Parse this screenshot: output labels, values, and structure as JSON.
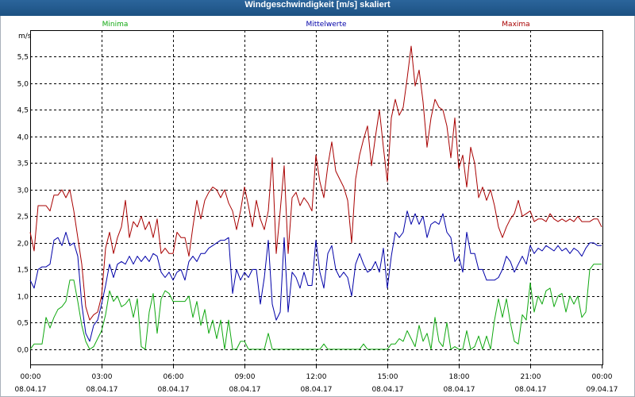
{
  "chart_data": {
    "type": "line",
    "title": "Windgeschwindigkeit [m/s] skaliert",
    "ylabel": "m/s",
    "xlabel": "",
    "ylim": [
      -0.3,
      6.0
    ],
    "xlim": [
      "08.04.17 00:00",
      "09.04.17 00:00"
    ],
    "grid": true,
    "legend_placement": "top",
    "y_ticks": [
      {
        "value": 0.0,
        "label": "0,0"
      },
      {
        "value": 0.5,
        "label": "0,5"
      },
      {
        "value": 1.0,
        "label": "1,0"
      },
      {
        "value": 1.5,
        "label": "1,5"
      },
      {
        "value": 2.0,
        "label": "2,0"
      },
      {
        "value": 2.5,
        "label": "2,5"
      },
      {
        "value": 3.0,
        "label": "3,0"
      },
      {
        "value": 3.5,
        "label": "3,5"
      },
      {
        "value": 4.0,
        "label": "4,0"
      },
      {
        "value": 4.5,
        "label": "4,5"
      },
      {
        "value": 5.0,
        "label": "5,0"
      },
      {
        "value": 5.5,
        "label": "5,5"
      }
    ],
    "x_ticks": [
      {
        "time": "00:00",
        "date": "08.04.17"
      },
      {
        "time": "03:00",
        "date": "08.04.17"
      },
      {
        "time": "06:00",
        "date": "08.04.17"
      },
      {
        "time": "09:00",
        "date": "08.04.17"
      },
      {
        "time": "12:00",
        "date": "08.04.17"
      },
      {
        "time": "15:00",
        "date": "08.04.17"
      },
      {
        "time": "18:00",
        "date": "08.04.17"
      },
      {
        "time": "21:00",
        "date": "08.04.17"
      },
      {
        "time": "00:00",
        "date": "09.04.17"
      }
    ],
    "x": [
      "08.04.17 00:00",
      "08.04.17 00:10",
      "08.04.17 00:20",
      "08.04.17 00:30",
      "08.04.17 00:40",
      "08.04.17 00:50",
      "08.04.17 01:00",
      "08.04.17 01:10",
      "08.04.17 01:20",
      "08.04.17 01:30",
      "08.04.17 01:40",
      "08.04.17 01:50",
      "08.04.17 02:00",
      "08.04.17 02:10",
      "08.04.17 02:20",
      "08.04.17 02:30",
      "08.04.17 02:40",
      "08.04.17 02:50",
      "08.04.17 03:00",
      "08.04.17 03:10",
      "08.04.17 03:20",
      "08.04.17 03:30",
      "08.04.17 03:40",
      "08.04.17 03:50",
      "08.04.17 04:00",
      "08.04.17 04:10",
      "08.04.17 04:20",
      "08.04.17 04:30",
      "08.04.17 04:40",
      "08.04.17 04:50",
      "08.04.17 05:00",
      "08.04.17 05:10",
      "08.04.17 05:20",
      "08.04.17 05:30",
      "08.04.17 05:40",
      "08.04.17 05:50",
      "08.04.17 06:00",
      "08.04.17 06:10",
      "08.04.17 06:20",
      "08.04.17 06:30",
      "08.04.17 06:40",
      "08.04.17 06:50",
      "08.04.17 07:00",
      "08.04.17 07:10",
      "08.04.17 07:20",
      "08.04.17 07:30",
      "08.04.17 07:40",
      "08.04.17 07:50",
      "08.04.17 08:00",
      "08.04.17 08:10",
      "08.04.17 08:20",
      "08.04.17 08:30",
      "08.04.17 08:40",
      "08.04.17 08:50",
      "08.04.17 09:00",
      "08.04.17 09:10",
      "08.04.17 09:20",
      "08.04.17 09:30",
      "08.04.17 09:40",
      "08.04.17 09:50",
      "08.04.17 10:00",
      "08.04.17 10:10",
      "08.04.17 10:20",
      "08.04.17 10:30",
      "08.04.17 10:40",
      "08.04.17 10:50",
      "08.04.17 11:00",
      "08.04.17 11:10",
      "08.04.17 11:20",
      "08.04.17 11:30",
      "08.04.17 11:40",
      "08.04.17 11:50",
      "08.04.17 12:00",
      "08.04.17 12:10",
      "08.04.17 12:20",
      "08.04.17 12:30",
      "08.04.17 12:40",
      "08.04.17 12:50",
      "08.04.17 13:00",
      "08.04.17 13:10",
      "08.04.17 13:20",
      "08.04.17 13:30",
      "08.04.17 13:40",
      "08.04.17 13:50",
      "08.04.17 14:00",
      "08.04.17 14:10",
      "08.04.17 14:20",
      "08.04.17 14:30",
      "08.04.17 14:40",
      "08.04.17 14:50",
      "08.04.17 15:00",
      "08.04.17 15:10",
      "08.04.17 15:20",
      "08.04.17 15:30",
      "08.04.17 15:40",
      "08.04.17 15:50",
      "08.04.17 16:00",
      "08.04.17 16:10",
      "08.04.17 16:20",
      "08.04.17 16:30",
      "08.04.17 16:40",
      "08.04.17 16:50",
      "08.04.17 17:00",
      "08.04.17 17:10",
      "08.04.17 17:20",
      "08.04.17 17:30",
      "08.04.17 17:40",
      "08.04.17 17:50",
      "08.04.17 18:00",
      "08.04.17 18:10",
      "08.04.17 18:20",
      "08.04.17 18:30",
      "08.04.17 18:40",
      "08.04.17 18:50",
      "08.04.17 19:00",
      "08.04.17 19:10",
      "08.04.17 19:20",
      "08.04.17 19:30",
      "08.04.17 19:40",
      "08.04.17 19:50",
      "08.04.17 20:00",
      "08.04.17 20:10",
      "08.04.17 20:20",
      "08.04.17 20:30",
      "08.04.17 20:40",
      "08.04.17 20:50",
      "08.04.17 21:00",
      "08.04.17 21:10",
      "08.04.17 21:20",
      "08.04.17 21:30",
      "08.04.17 21:40",
      "08.04.17 21:50",
      "08.04.17 22:00",
      "08.04.17 22:10",
      "08.04.17 22:20",
      "08.04.17 22:30",
      "08.04.17 22:40",
      "08.04.17 22:50",
      "08.04.17 23:00",
      "08.04.17 23:10",
      "08.04.17 23:20",
      "08.04.17 23:30",
      "08.04.17 23:40",
      "08.04.17 23:50",
      "09.04.17 00:00"
    ],
    "series": [
      {
        "name": "Minima",
        "color": "#10a810",
        "values": [
          0.0,
          0.1,
          0.1,
          0.1,
          0.6,
          0.4,
          0.6,
          0.75,
          0.8,
          0.9,
          1.3,
          1.3,
          0.9,
          0.45,
          0.15,
          0.0,
          0.05,
          0.2,
          0.35,
          0.65,
          1.1,
          0.9,
          1.0,
          0.8,
          0.85,
          0.95,
          0.6,
          0.95,
          0.05,
          0.0,
          0.7,
          1.05,
          0.3,
          0.95,
          1.1,
          1.05,
          0.9,
          0.9,
          0.9,
          0.9,
          1.0,
          0.6,
          0.9,
          0.45,
          0.75,
          0.3,
          0.55,
          0.2,
          0.55,
          0.0,
          0.55,
          0.0,
          0.0,
          0.15,
          0.15,
          0.0,
          0.0,
          0.0,
          0.0,
          0.0,
          0.3,
          0.0,
          0.0,
          0.0,
          0.0,
          0.0,
          0.0,
          0.0,
          0.0,
          0.0,
          0.0,
          0.0,
          0.0,
          0.0,
          0.1,
          0.0,
          0.0,
          0.0,
          0.0,
          0.0,
          0.0,
          0.0,
          0.0,
          0.0,
          0.1,
          0.0,
          0.0,
          0.0,
          0.0,
          0.0,
          0.0,
          0.1,
          0.1,
          0.2,
          0.15,
          0.35,
          0.2,
          0.05,
          0.45,
          0.15,
          0.3,
          0.0,
          0.6,
          0.15,
          0.05,
          0.5,
          0.0,
          0.05,
          0.0,
          0.0,
          0.35,
          0.0,
          0.05,
          0.25,
          0.0,
          0.25,
          0.0,
          0.55,
          0.95,
          0.6,
          0.95,
          0.5,
          0.15,
          0.1,
          0.65,
          0.55,
          1.25,
          0.7,
          1.0,
          0.85,
          1.1,
          1.15,
          0.8,
          1.0,
          1.05,
          0.7,
          1.0,
          0.85,
          1.0,
          0.6,
          0.7,
          1.5,
          1.6,
          1.6,
          1.6
        ]
      },
      {
        "name": "Mittelwerte",
        "color": "#0000a8",
        "values": [
          1.3,
          1.15,
          1.5,
          1.55,
          1.55,
          1.6,
          2.05,
          2.1,
          1.95,
          2.2,
          1.95,
          2.0,
          1.75,
          0.85,
          0.3,
          0.15,
          0.45,
          0.55,
          0.85,
          1.2,
          1.6,
          1.35,
          1.6,
          1.65,
          1.6,
          1.75,
          1.6,
          1.75,
          1.65,
          1.75,
          1.65,
          1.8,
          1.75,
          1.45,
          1.35,
          1.45,
          1.3,
          1.45,
          1.5,
          1.3,
          1.65,
          1.75,
          1.65,
          1.8,
          1.8,
          1.9,
          1.95,
          2.0,
          2.05,
          2.05,
          2.1,
          1.05,
          1.5,
          1.3,
          1.45,
          1.35,
          1.5,
          1.5,
          0.85,
          1.35,
          2.05,
          0.85,
          0.55,
          0.7,
          2.1,
          0.7,
          1.45,
          1.35,
          1.15,
          1.45,
          1.2,
          1.2,
          2.05,
          1.45,
          1.15,
          1.8,
          1.95,
          1.5,
          1.35,
          1.45,
          1.35,
          1.0,
          1.6,
          1.8,
          1.6,
          1.45,
          1.5,
          1.65,
          1.45,
          1.9,
          1.15,
          1.75,
          2.2,
          2.1,
          2.2,
          2.6,
          2.35,
          2.55,
          2.35,
          2.5,
          2.1,
          2.35,
          2.4,
          2.35,
          2.55,
          2.2,
          2.1,
          1.65,
          1.75,
          1.45,
          2.2,
          1.8,
          1.8,
          1.5,
          1.5,
          1.3,
          1.3,
          1.3,
          1.35,
          1.5,
          1.75,
          1.65,
          1.45,
          1.6,
          1.75,
          1.6,
          1.95,
          1.8,
          1.9,
          1.85,
          1.95,
          1.9,
          1.85,
          1.95,
          1.85,
          1.9,
          1.8,
          1.9,
          1.85,
          1.75,
          1.9,
          2.0,
          2.0,
          1.95,
          1.95
        ]
      },
      {
        "name": "Maxima",
        "color": "#a80000",
        "values": [
          2.2,
          1.85,
          2.7,
          2.7,
          2.7,
          2.6,
          2.9,
          2.9,
          3.0,
          2.85,
          3.0,
          2.6,
          2.1,
          1.6,
          0.8,
          0.55,
          0.65,
          0.7,
          1.0,
          1.9,
          2.2,
          1.8,
          2.1,
          2.3,
          2.8,
          2.1,
          2.4,
          2.3,
          2.5,
          2.25,
          2.4,
          2.1,
          2.45,
          1.8,
          1.9,
          1.8,
          1.8,
          2.2,
          2.1,
          2.1,
          1.75,
          2.3,
          2.8,
          2.45,
          2.8,
          2.95,
          3.05,
          3.0,
          2.85,
          3.0,
          2.75,
          2.6,
          2.25,
          2.6,
          3.05,
          2.7,
          2.3,
          2.8,
          2.45,
          2.25,
          2.6,
          3.6,
          1.8,
          2.6,
          3.45,
          1.8,
          2.85,
          2.95,
          2.7,
          2.85,
          2.75,
          2.6,
          3.65,
          3.15,
          2.85,
          3.45,
          3.9,
          3.35,
          3.2,
          3.05,
          2.8,
          2.0,
          3.2,
          3.65,
          3.95,
          4.2,
          3.45,
          4.0,
          4.5,
          3.8,
          3.15,
          4.35,
          4.7,
          4.4,
          4.55,
          5.1,
          5.7,
          4.95,
          5.25,
          4.65,
          3.8,
          4.35,
          4.7,
          4.55,
          4.5,
          4.2,
          3.6,
          4.35,
          3.4,
          3.65,
          3.05,
          3.8,
          3.5,
          2.85,
          3.05,
          2.8,
          3.0,
          2.7,
          2.3,
          2.1,
          2.3,
          2.45,
          2.55,
          2.8,
          2.5,
          2.55,
          2.6,
          2.4,
          2.45,
          2.45,
          2.4,
          2.55,
          2.45,
          2.4,
          2.45,
          2.4,
          2.45,
          2.4,
          2.5,
          2.4,
          2.4,
          2.4,
          2.45,
          2.45,
          2.3
        ]
      }
    ]
  }
}
